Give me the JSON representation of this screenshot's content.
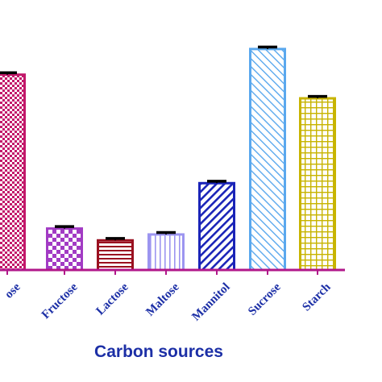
{
  "chart_data": {
    "type": "bar",
    "xlabel": "Carbon sources",
    "categories": [
      "Glucose",
      "Fructose",
      "Lactose",
      "Maltose",
      "Mannitol",
      "Sucrose",
      "Starch"
    ],
    "visible_category_labels": [
      "ose",
      "Fructose",
      "Lactose",
      "Maltose",
      "Mannitol",
      "Sucrose",
      "Starch"
    ],
    "values": [
      9.9,
      2.1,
      1.5,
      1.8,
      4.4,
      11.2,
      8.7
    ],
    "errors": [
      0.1,
      0.1,
      0.1,
      0.1,
      0.1,
      0.1,
      0.1
    ],
    "ylim": [
      0,
      12.5
    ],
    "bar_colors": [
      "#c2186a",
      "#a23bc4",
      "#9a1020",
      "#9c95f0",
      "#1a24b8",
      "#5aa8ee",
      "#c8b400"
    ],
    "patterns": [
      "checker",
      "checker-large",
      "horizontal-lines",
      "vertical-lines",
      "diagonal-forward",
      "diagonal-back",
      "grid"
    ],
    "axis_color": "#b1178a",
    "error_bar_color": "#000000"
  }
}
